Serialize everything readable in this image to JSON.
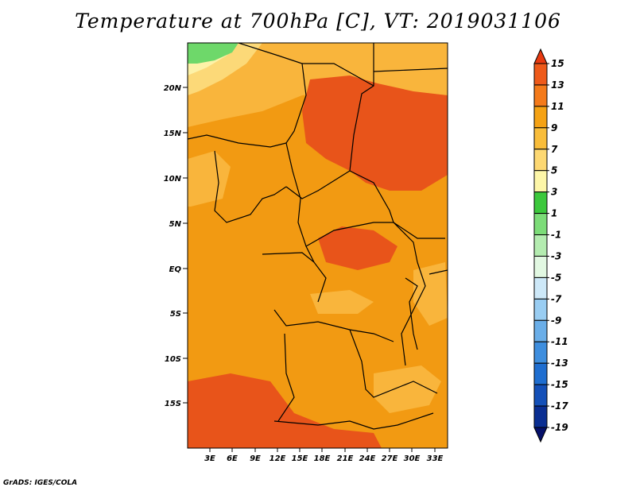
{
  "title": "Temperature at 700hPa [C], VT: 2019031106",
  "credit": "GrADS: IGES/COLA",
  "map": {
    "lon_labels": [
      "3E",
      "6E",
      "9E",
      "12E",
      "15E",
      "18E",
      "21E",
      "24E",
      "27E",
      "30E",
      "33E"
    ],
    "lat_labels": [
      "20N",
      "15N",
      "10N",
      "5N",
      "EQ",
      "5S",
      "10S",
      "15S"
    ],
    "colors": {
      "hot": "#e8541a",
      "warm": "#f29a12",
      "mild": "#f9b53c",
      "cool": "#fcd978",
      "pale": "#fdf2a8",
      "green": "#6ed86a",
      "border": "#000000"
    }
  },
  "colorbar": {
    "labels": [
      "15",
      "13",
      "11",
      "9",
      "7",
      "5",
      "3",
      "1",
      "-1",
      "-3",
      "-5",
      "-7",
      "-9",
      "-11",
      "-13",
      "-15",
      "-17",
      "-19"
    ],
    "colors": [
      "#e83a10",
      "#ee5a1a",
      "#f47a1a",
      "#f5a214",
      "#f9bd3a",
      "#fdd872",
      "#fdf6a8",
      "#3cc83c",
      "#7cdc78",
      "#b4ecb0",
      "#e2f8e2",
      "#cde8f8",
      "#99cdf2",
      "#6aaee8",
      "#3e8ede",
      "#1f6ed0",
      "#1450b8",
      "#0a2e92",
      "#05106a"
    ]
  }
}
